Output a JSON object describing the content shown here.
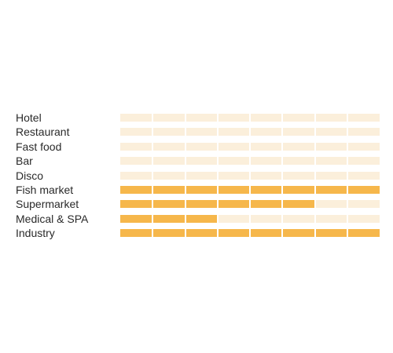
{
  "chart_data": {
    "type": "bar",
    "orientation": "horizontal",
    "categories": [
      "Hotel",
      "Restaurant",
      "Fast food",
      "Bar",
      "Disco",
      "Fish market",
      "Supermarket",
      "Medical & SPA",
      "Industry"
    ],
    "values": [
      0,
      0,
      0,
      0,
      0,
      8,
      6,
      3,
      8
    ],
    "xlim": [
      0,
      8
    ],
    "segments": 8,
    "grid": false,
    "legend": "none"
  },
  "colors": {
    "track": "#fbefdb",
    "fill": "#f6b74b",
    "label": "#2a2a2a"
  }
}
